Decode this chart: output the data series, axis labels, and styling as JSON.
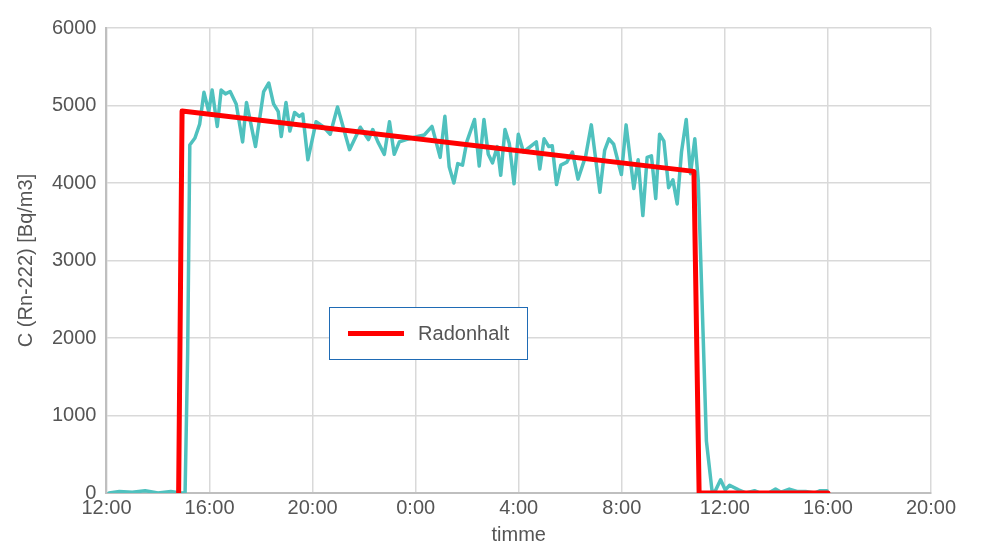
{
  "chart_data": {
    "type": "line",
    "xlabel": "timme",
    "ylabel": "C (Rn-222) [Bq/m3]",
    "xlim": [
      "--01-01T12:00",
      "--01-02T20:00"
    ],
    "xticks": [
      {
        "value": "--01-01T12:00",
        "label": "12:00"
      },
      {
        "value": "--01-01T16:00",
        "label": "16:00"
      },
      {
        "value": "--01-01T20:00",
        "label": "20:00"
      },
      {
        "value": "--01-02T00:00",
        "label": "0:00"
      },
      {
        "value": "--01-02T04:00",
        "label": "4:00"
      },
      {
        "value": "--01-02T08:00",
        "label": "8:00"
      },
      {
        "value": "--01-02T12:00",
        "label": "12:00"
      },
      {
        "value": "--01-02T16:00",
        "label": "16:00"
      },
      {
        "value": "--01-02T20:00",
        "label": "20:00"
      }
    ],
    "ylim": [
      0,
      6000
    ],
    "yticks": [
      0,
      1000,
      2000,
      3000,
      4000,
      5000,
      6000
    ],
    "grid": true,
    "legend": "center",
    "marker": "none",
    "line_style": "solid",
    "series": [
      {
        "name": "Radonhalt",
        "color": "#ff0000",
        "x": [
          "--01-01T14:48",
          "--01-01T14:56",
          "--01-02T10:48",
          "--01-02T11:00",
          "--01-02T16:00"
        ],
        "values": [
          0,
          4930,
          4150,
          0,
          0
        ]
      },
      {
        "color": "#4fc1be",
        "x": [
          "--01-01T12:06",
          "--01-01T12:30",
          "--01-01T13:00",
          "--01-01T13:30",
          "--01-01T14:00",
          "--01-01T14:30",
          "--01-01T14:51",
          "--01-01T15:03",
          "--01-01T15:09",
          "--01-01T15:14",
          "--01-01T15:26",
          "--01-01T15:37",
          "--01-01T15:47",
          "--01-01T15:58",
          "--01-01T16:06",
          "--01-01T16:18",
          "--01-01T16:27",
          "--01-01T16:37",
          "--01-01T16:48",
          "--01-01T17:02",
          "--01-01T17:17",
          "--01-01T17:26",
          "--01-01T17:47",
          "--01-01T18:06",
          "--01-01T18:18",
          "--01-01T18:29",
          "--01-01T18:40",
          "--01-01T18:47",
          "--01-01T18:58",
          "--01-01T19:07",
          "--01-01T19:18",
          "--01-01T19:29",
          "--01-01T19:37",
          "--01-01T19:49",
          "--01-01T20:08",
          "--01-01T20:24",
          "--01-01T20:41",
          "--01-01T20:58",
          "--01-01T21:26",
          "--01-01T21:51",
          "--01-01T22:10",
          "--01-01T22:20",
          "--01-01T22:32",
          "--01-01T22:47",
          "--01-01T22:59",
          "--01-01T23:10",
          "--01-01T23:22",
          "--01-01T23:38",
          "--01-02T00:04",
          "--01-02T00:20",
          "--01-02T00:38",
          "--01-02T00:57",
          "--01-02T01:08",
          "--01-02T01:18",
          "--01-02T01:29",
          "--01-02T01:38",
          "--01-02T01:49",
          "--01-02T01:59",
          "--01-02T02:17",
          "--01-02T02:28",
          "--01-02T02:39",
          "--01-02T02:49",
          "--01-02T02:59",
          "--01-02T03:10",
          "--01-02T03:18",
          "--01-02T03:28",
          "--01-02T03:38",
          "--01-02T03:49",
          "--01-02T03:59",
          "--01-02T04:11",
          "--01-02T04:41",
          "--01-02T04:49",
          "--01-02T04:59",
          "--01-02T05:10",
          "--01-02T05:18",
          "--01-02T05:28",
          "--01-02T05:38",
          "--01-02T05:52",
          "--01-02T06:05",
          "--01-02T06:18",
          "--01-02T06:36",
          "--01-02T06:49",
          "--01-02T07:09",
          "--01-02T07:20",
          "--01-02T07:30",
          "--01-02T07:41",
          "--01-02T07:59",
          "--01-02T08:10",
          "--01-02T08:28",
          "--01-02T08:38",
          "--01-02T08:49",
          "--01-02T08:59",
          "--01-02T09:09",
          "--01-02T09:19",
          "--01-02T09:28",
          "--01-02T09:38",
          "--01-02T09:49",
          "--01-02T09:59",
          "--01-02T10:09",
          "--01-02T10:19",
          "--01-02T10:30",
          "--01-02T10:40",
          "--01-02T10:50",
          "--01-02T10:58",
          "--01-02T11:09",
          "--01-02T11:17",
          "--01-02T11:30",
          "--01-02T11:37",
          "--01-02T11:50",
          "--01-02T12:01",
          "--01-02T12:11",
          "--01-02T12:32",
          "--01-02T12:50",
          "--01-02T13:09",
          "--01-02T13:22",
          "--01-02T13:42",
          "--01-02T13:58",
          "--01-02T14:11",
          "--01-02T14:30",
          "--01-02T14:48",
          "--01-02T15:08",
          "--01-02T15:29",
          "--01-02T15:42",
          "--01-02T15:58"
        ],
        "values": [
          0,
          20,
          10,
          30,
          0,
          20,
          0,
          0,
          1800,
          4490,
          4580,
          4760,
          5170,
          4920,
          5200,
          4730,
          5200,
          5150,
          5180,
          5020,
          4530,
          5040,
          4470,
          5180,
          5290,
          5020,
          4920,
          4600,
          5040,
          4670,
          4910,
          4860,
          4890,
          4300,
          4790,
          4730,
          4630,
          4980,
          4430,
          4720,
          4560,
          4690,
          4530,
          4370,
          4790,
          4370,
          4530,
          4560,
          4600,
          4620,
          4730,
          4330,
          4860,
          4210,
          4000,
          4250,
          4230,
          4530,
          4820,
          4220,
          4820,
          4370,
          4260,
          4470,
          4100,
          4690,
          4510,
          3990,
          4630,
          4400,
          4530,
          4180,
          4570,
          4470,
          4480,
          3980,
          4230,
          4270,
          4400,
          4050,
          4350,
          4750,
          3880,
          4420,
          4570,
          4500,
          4110,
          4750,
          3930,
          4300,
          3580,
          4330,
          4350,
          3800,
          4630,
          4540,
          3940,
          4040,
          3730,
          4400,
          4820,
          4120,
          4570,
          4030,
          2100,
          670,
          30,
          20,
          170,
          40,
          100,
          40,
          0,
          30,
          0,
          0,
          50,
          10,
          50,
          20,
          20,
          0,
          30,
          30
        ]
      }
    ]
  }
}
